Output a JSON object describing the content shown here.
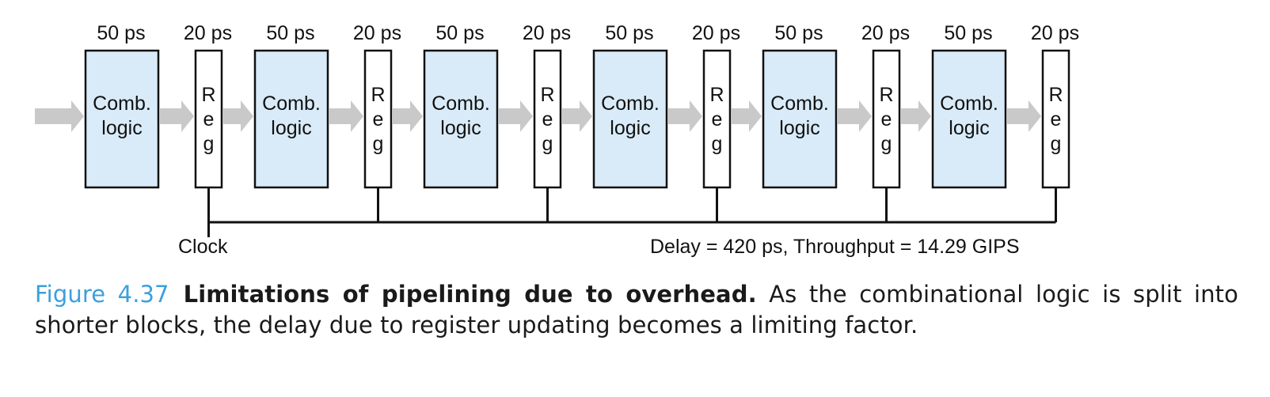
{
  "pipeline": {
    "stages": [
      {
        "logic_delay": "50 ps",
        "logic_label": [
          "Comb.",
          "logic"
        ],
        "reg_delay": "20 ps",
        "reg_label": [
          "R",
          "e",
          "g"
        ]
      },
      {
        "logic_delay": "50 ps",
        "logic_label": [
          "Comb.",
          "logic"
        ],
        "reg_delay": "20 ps",
        "reg_label": [
          "R",
          "e",
          "g"
        ]
      },
      {
        "logic_delay": "50 ps",
        "logic_label": [
          "Comb.",
          "logic"
        ],
        "reg_delay": "20 ps",
        "reg_label": [
          "R",
          "e",
          "g"
        ]
      },
      {
        "logic_delay": "50 ps",
        "logic_label": [
          "Comb.",
          "logic"
        ],
        "reg_delay": "20 ps",
        "reg_label": [
          "R",
          "e",
          "g"
        ]
      },
      {
        "logic_delay": "50 ps",
        "logic_label": [
          "Comb.",
          "logic"
        ],
        "reg_delay": "20 ps",
        "reg_label": [
          "R",
          "e",
          "g"
        ]
      },
      {
        "logic_delay": "50 ps",
        "logic_label": [
          "Comb.",
          "logic"
        ],
        "reg_delay": "20 ps",
        "reg_label": [
          "R",
          "e",
          "g"
        ]
      }
    ],
    "clock_label": "Clock",
    "summary": "Delay = 420 ps, Throughput = 14.29 GIPS"
  },
  "colors": {
    "logic_fill": "#d9ebf8",
    "arrow": "#c9c9c9",
    "stroke": "#111111",
    "figure_number": "#3aa0dd"
  },
  "caption": {
    "figure_number": "Figure 4.37",
    "title": "Limitations of pipelining due to overhead.",
    "text": "As the combinational logic is split into shorter blocks, the delay due to register updating becomes a limiting factor."
  }
}
